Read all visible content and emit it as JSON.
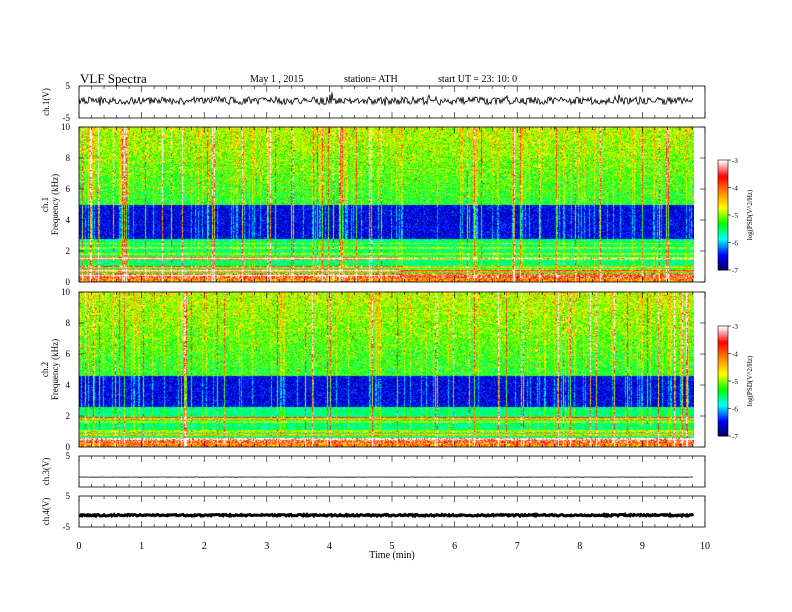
{
  "header": {
    "title": "VLF  Spectra",
    "date": "May 1  , 2015",
    "station": "station= ATH",
    "start": "start  UT  =   23: 10: 0"
  },
  "chart_data": {
    "type": "spectrogram",
    "xlabel": "Time  (min)",
    "xlim": [
      0,
      10
    ],
    "xticks": [
      "0",
      "1",
      "2",
      "3",
      "4",
      "5",
      "6",
      "7",
      "8",
      "9",
      "10"
    ],
    "data_end_min": 9.82,
    "waveforms": [
      {
        "id": "ch1",
        "ylabel": "ch.1(V)",
        "yticks": [
          "5",
          "-5"
        ],
        "ylim": [
          -5,
          5
        ],
        "level": 0.4,
        "noise": 1.2
      },
      {
        "id": "ch3",
        "ylabel": "ch.3(V)",
        "yticks": [
          "5"
        ],
        "ylim": [
          -5,
          5
        ],
        "level": -1.8,
        "noise": 0.05
      },
      {
        "id": "ch4",
        "ylabel": "ch.4(V)",
        "yticks": [
          "5",
          "-5"
        ],
        "ylim": [
          -5,
          5
        ],
        "level": -1.2,
        "noise": 0.25
      }
    ],
    "spectrograms": [
      {
        "id": "ch1-spec",
        "ylabel_channel": "ch.1",
        "ylabel": "Frequency  (kHz)",
        "ylim": [
          0,
          10
        ],
        "yticks": [
          "0",
          "2",
          "4",
          "6",
          "8",
          "10"
        ],
        "dark_band_khz": [
          2.8,
          5.0
        ]
      },
      {
        "id": "ch2-spec",
        "ylabel_channel": "ch.2",
        "ylabel": "Frequency  (kHz)",
        "ylim": [
          0,
          10
        ],
        "yticks": [
          "0",
          "2",
          "4",
          "6",
          "8",
          "10"
        ],
        "dark_band_khz": [
          2.6,
          4.6
        ]
      }
    ],
    "colorbar": {
      "label": "log(PSD(V^2/Hz)",
      "range": [
        -7,
        -3
      ],
      "ticks": [
        "-3",
        "-4",
        "-5",
        "-6",
        "-7"
      ],
      "colors": [
        "#000055",
        "#0000ff",
        "#00ffff",
        "#00ff00",
        "#ffff00",
        "#ff8800",
        "#ff0000",
        "#ffffff"
      ]
    }
  }
}
